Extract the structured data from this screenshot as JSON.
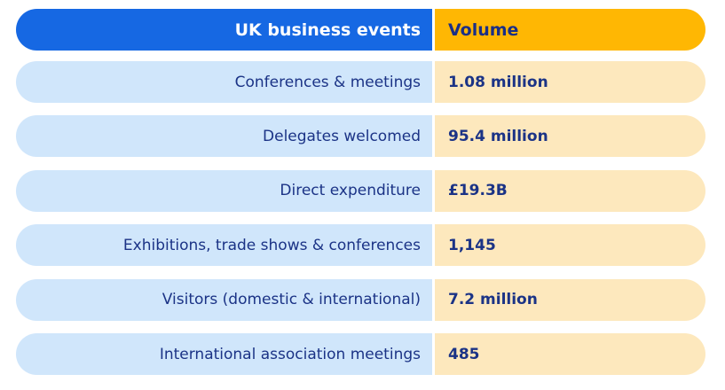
{
  "table": {
    "header": [
      "UK business events",
      "Volume"
    ],
    "rows": [
      [
        "Conferences & meetings",
        "1.08 million"
      ],
      [
        "Delegates welcomed",
        "95.4 million"
      ],
      [
        "Direct expenditure",
        "£19.3B"
      ],
      [
        "Exhibitions, trade shows & conferences",
        "1,145"
      ],
      [
        "Visitors (domestic & international)",
        "7.2 million"
      ],
      [
        "International association meetings",
        "485"
      ]
    ]
  }
}
